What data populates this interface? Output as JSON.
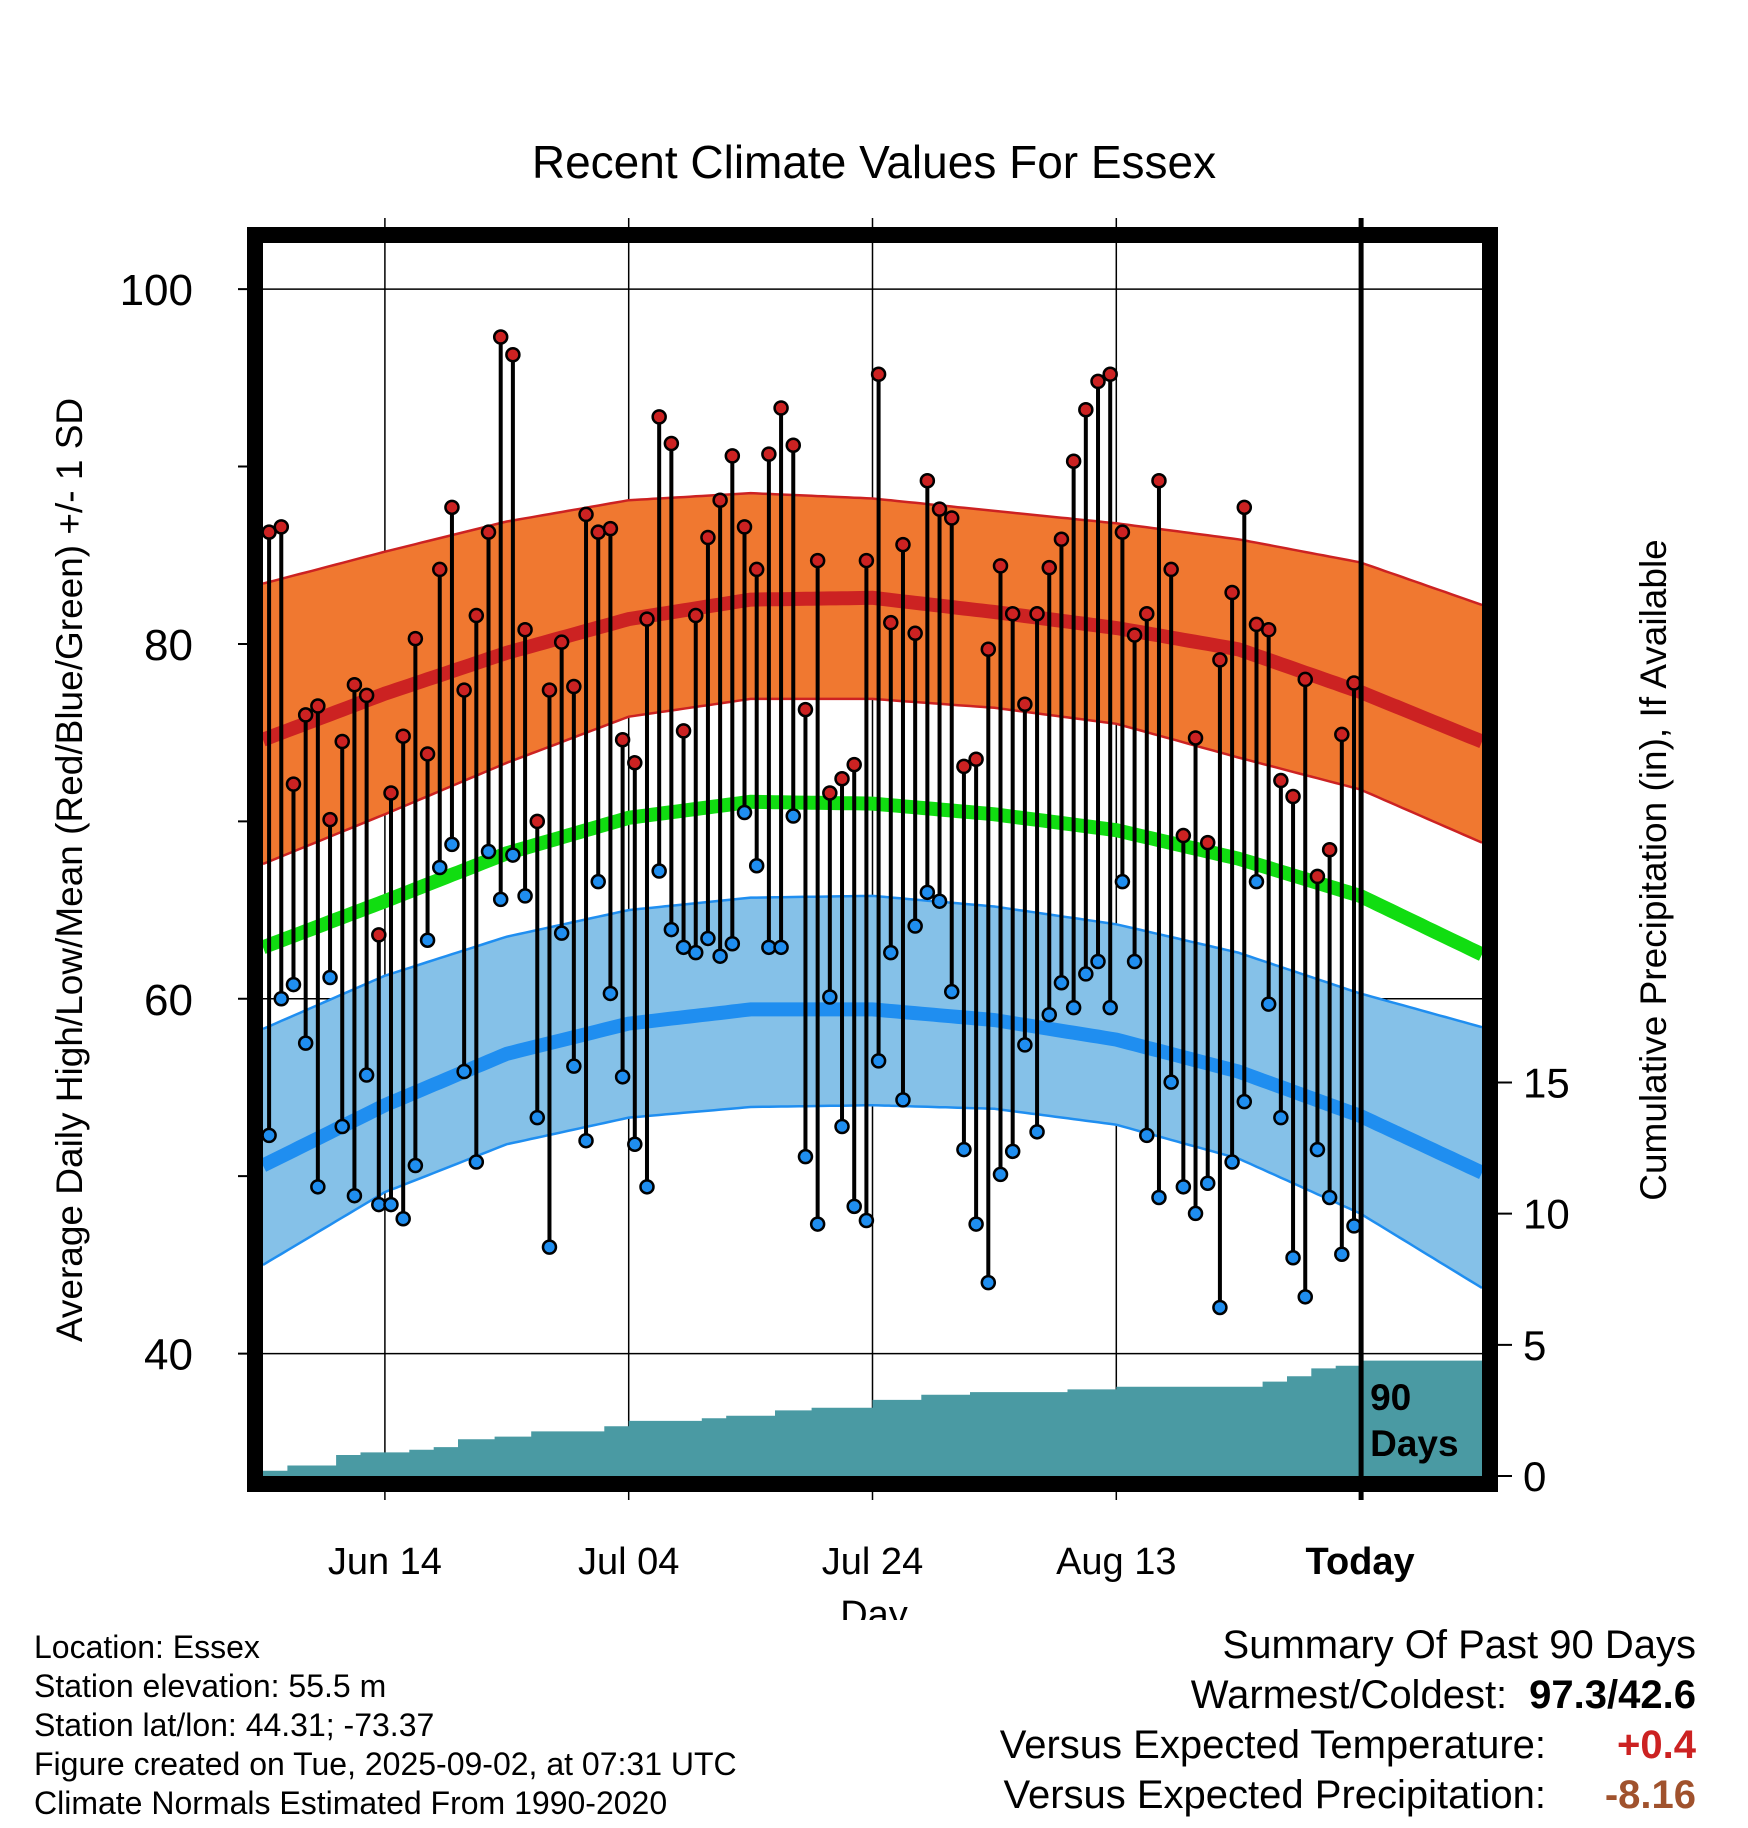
{
  "chart_data": {
    "type": "line",
    "title": "Recent Climate Values For Essex",
    "xlabel": "Day",
    "ylabel": "Average Daily High/Low/Mean (Red/Blue/Green) +/- 1 SD",
    "y2label": "Cumulative Precipitation (in), If Available",
    "x_ticks": [
      "Jun 14",
      "Jul 04",
      "Jul 24",
      "Aug 13",
      "Today"
    ],
    "y_ticks": [
      40,
      60,
      80,
      100
    ],
    "y_range": [
      33.1,
      102.6
    ],
    "y2_ticks": [
      0,
      5,
      10,
      15
    ],
    "y2_range": [
      0,
      47
    ],
    "x_range_days": [
      0,
      100
    ],
    "today_day": 90,
    "today_label": "90 Days",
    "grid": true,
    "colors": {
      "high": "#cc2222",
      "high_band": "#f07830",
      "low": "#1f8ef0",
      "low_band": "#85c1e8",
      "mean": "#11dd11",
      "precip": "#4a9aa3"
    },
    "normals": {
      "days": [
        0,
        10,
        20,
        30,
        40,
        50,
        60,
        70,
        80,
        90,
        100
      ],
      "high": [
        74.6,
        77.2,
        79.5,
        81.4,
        82.5,
        82.6,
        81.8,
        80.9,
        79.7,
        77.3,
        74.5
      ],
      "high_sd_upper": [
        83.4,
        85.2,
        86.9,
        88.1,
        88.5,
        88.2,
        87.5,
        86.8,
        85.9,
        84.6,
        82.2
      ],
      "high_sd_lower": [
        67.6,
        70.4,
        73.3,
        75.9,
        76.9,
        76.9,
        76.4,
        75.5,
        73.6,
        71.8,
        68.8
      ],
      "low": [
        50.6,
        54.0,
        56.9,
        58.6,
        59.4,
        59.4,
        58.8,
        57.7,
        55.9,
        53.4,
        50.2
      ],
      "low_sd_upper": [
        58.3,
        61.3,
        63.5,
        65.0,
        65.7,
        65.8,
        65.2,
        64.2,
        62.6,
        60.3,
        58.4
      ],
      "low_sd_lower": [
        45.0,
        49.1,
        51.8,
        53.3,
        53.9,
        54.0,
        53.8,
        52.9,
        51.0,
        47.9,
        43.7
      ],
      "mean": [
        62.9,
        65.5,
        68.2,
        70.2,
        71.1,
        71.0,
        70.4,
        69.5,
        67.9,
        65.8,
        62.5
      ]
    },
    "observed": {
      "days": [
        0,
        1,
        2,
        3,
        4,
        5,
        6,
        7,
        8,
        9,
        10,
        11,
        12,
        13,
        14,
        15,
        16,
        17,
        18,
        19,
        20,
        21,
        22,
        23,
        24,
        25,
        26,
        27,
        28,
        29,
        30,
        31,
        32,
        33,
        34,
        35,
        36,
        37,
        38,
        39,
        40,
        41,
        42,
        43,
        44,
        45,
        46,
        47,
        48,
        49,
        50,
        51,
        52,
        53,
        54,
        55,
        56,
        57,
        58,
        59,
        60,
        61,
        62,
        63,
        64,
        65,
        66,
        67,
        68,
        69,
        70,
        71,
        72,
        73,
        74,
        75,
        76,
        77,
        78,
        79,
        80,
        81,
        82,
        83,
        84,
        85,
        86,
        87,
        88,
        89
      ],
      "high": [
        86.3,
        86.6,
        72.1,
        76.0,
        76.5,
        70.1,
        74.5,
        77.7,
        77.1,
        63.6,
        71.6,
        74.8,
        80.3,
        73.8,
        84.2,
        87.7,
        77.4,
        81.6,
        86.3,
        97.3,
        96.3,
        80.8,
        70.0,
        77.4,
        80.1,
        77.6,
        87.3,
        86.3,
        86.5,
        74.6,
        73.3,
        81.4,
        92.8,
        91.3,
        75.1,
        81.6,
        86.0,
        88.1,
        90.6,
        86.6,
        84.2,
        90.7,
        93.3,
        91.2,
        76.3,
        84.7,
        71.6,
        72.4,
        73.2,
        84.7,
        95.2,
        81.2,
        85.6,
        80.6,
        89.2,
        87.6,
        87.1,
        73.1,
        73.5,
        79.7,
        84.4,
        81.7,
        76.6,
        81.7,
        84.3,
        85.9,
        90.3,
        93.2,
        94.8,
        95.2,
        86.3,
        80.5,
        81.7,
        89.2,
        84.2,
        69.2,
        74.7,
        68.8,
        79.1,
        82.9,
        87.7,
        81.1,
        80.8,
        72.3,
        71.4,
        78.0,
        66.9,
        68.4,
        74.9,
        77.8
      ],
      "low": [
        52.3,
        60.0,
        60.8,
        57.5,
        49.4,
        61.2,
        52.8,
        48.9,
        55.7,
        48.4,
        48.4,
        47.6,
        50.6,
        63.3,
        67.4,
        68.7,
        55.9,
        50.8,
        68.3,
        65.6,
        68.1,
        65.8,
        53.3,
        46.0,
        63.7,
        56.2,
        52.0,
        66.6,
        60.3,
        55.6,
        51.8,
        49.4,
        67.2,
        63.9,
        62.9,
        62.6,
        63.4,
        62.4,
        63.1,
        70.5,
        67.5,
        62.9,
        62.9,
        70.3,
        51.1,
        47.3,
        60.1,
        52.8,
        48.3,
        47.5,
        56.5,
        62.6,
        54.3,
        64.1,
        66.0,
        65.5,
        60.4,
        51.5,
        47.3,
        44.0,
        50.1,
        51.4,
        57.4,
        52.5,
        59.1,
        60.9,
        59.5,
        61.4,
        62.1,
        59.5,
        66.6,
        62.1,
        52.3,
        48.8,
        55.3,
        49.4,
        47.9,
        49.6,
        42.6,
        50.8,
        54.2,
        66.6,
        59.7,
        53.3,
        45.4,
        43.2,
        51.5,
        48.8,
        45.6,
        47.2
      ]
    },
    "precip_cumulative": {
      "days": [
        0,
        2,
        6,
        8,
        12,
        14,
        16,
        19,
        22,
        24,
        26,
        28,
        30,
        33,
        36,
        38,
        40,
        42,
        44,
        45,
        46,
        48,
        50,
        52,
        54,
        56,
        58,
        60,
        62,
        64,
        66,
        68,
        70,
        72,
        74,
        76,
        78,
        80,
        82,
        84,
        86,
        88,
        90,
        100
      ],
      "values": [
        0.2,
        0.4,
        0.8,
        0.9,
        1.0,
        1.1,
        1.4,
        1.5,
        1.7,
        1.7,
        1.7,
        1.9,
        2.1,
        2.1,
        2.2,
        2.3,
        2.3,
        2.5,
        2.5,
        2.6,
        2.6,
        2.6,
        2.9,
        2.9,
        3.1,
        3.1,
        3.2,
        3.2,
        3.2,
        3.2,
        3.3,
        3.3,
        3.4,
        3.4,
        3.4,
        3.4,
        3.4,
        3.4,
        3.6,
        3.8,
        4.1,
        4.2,
        4.4,
        4.4
      ]
    }
  },
  "info": {
    "location": "Location: Essex",
    "elevation": "Station elevation: 55.5 m",
    "latlon": "Station lat/lon: 44.31; -73.37",
    "created": "Figure created on Tue, 2025-09-02, at 07:31 UTC",
    "normals_source": "Climate Normals Estimated From 1990-2020"
  },
  "summary": {
    "heading": "Summary Of Past 90 Days",
    "warm_cold_label": "Warmest/Coldest:",
    "warm_cold_value": "97.3/42.6",
    "temp_label": "Versus Expected Temperature:",
    "temp_value": "+0.4",
    "precip_label": "Versus Expected Precipitation:",
    "precip_value": "-8.16"
  }
}
